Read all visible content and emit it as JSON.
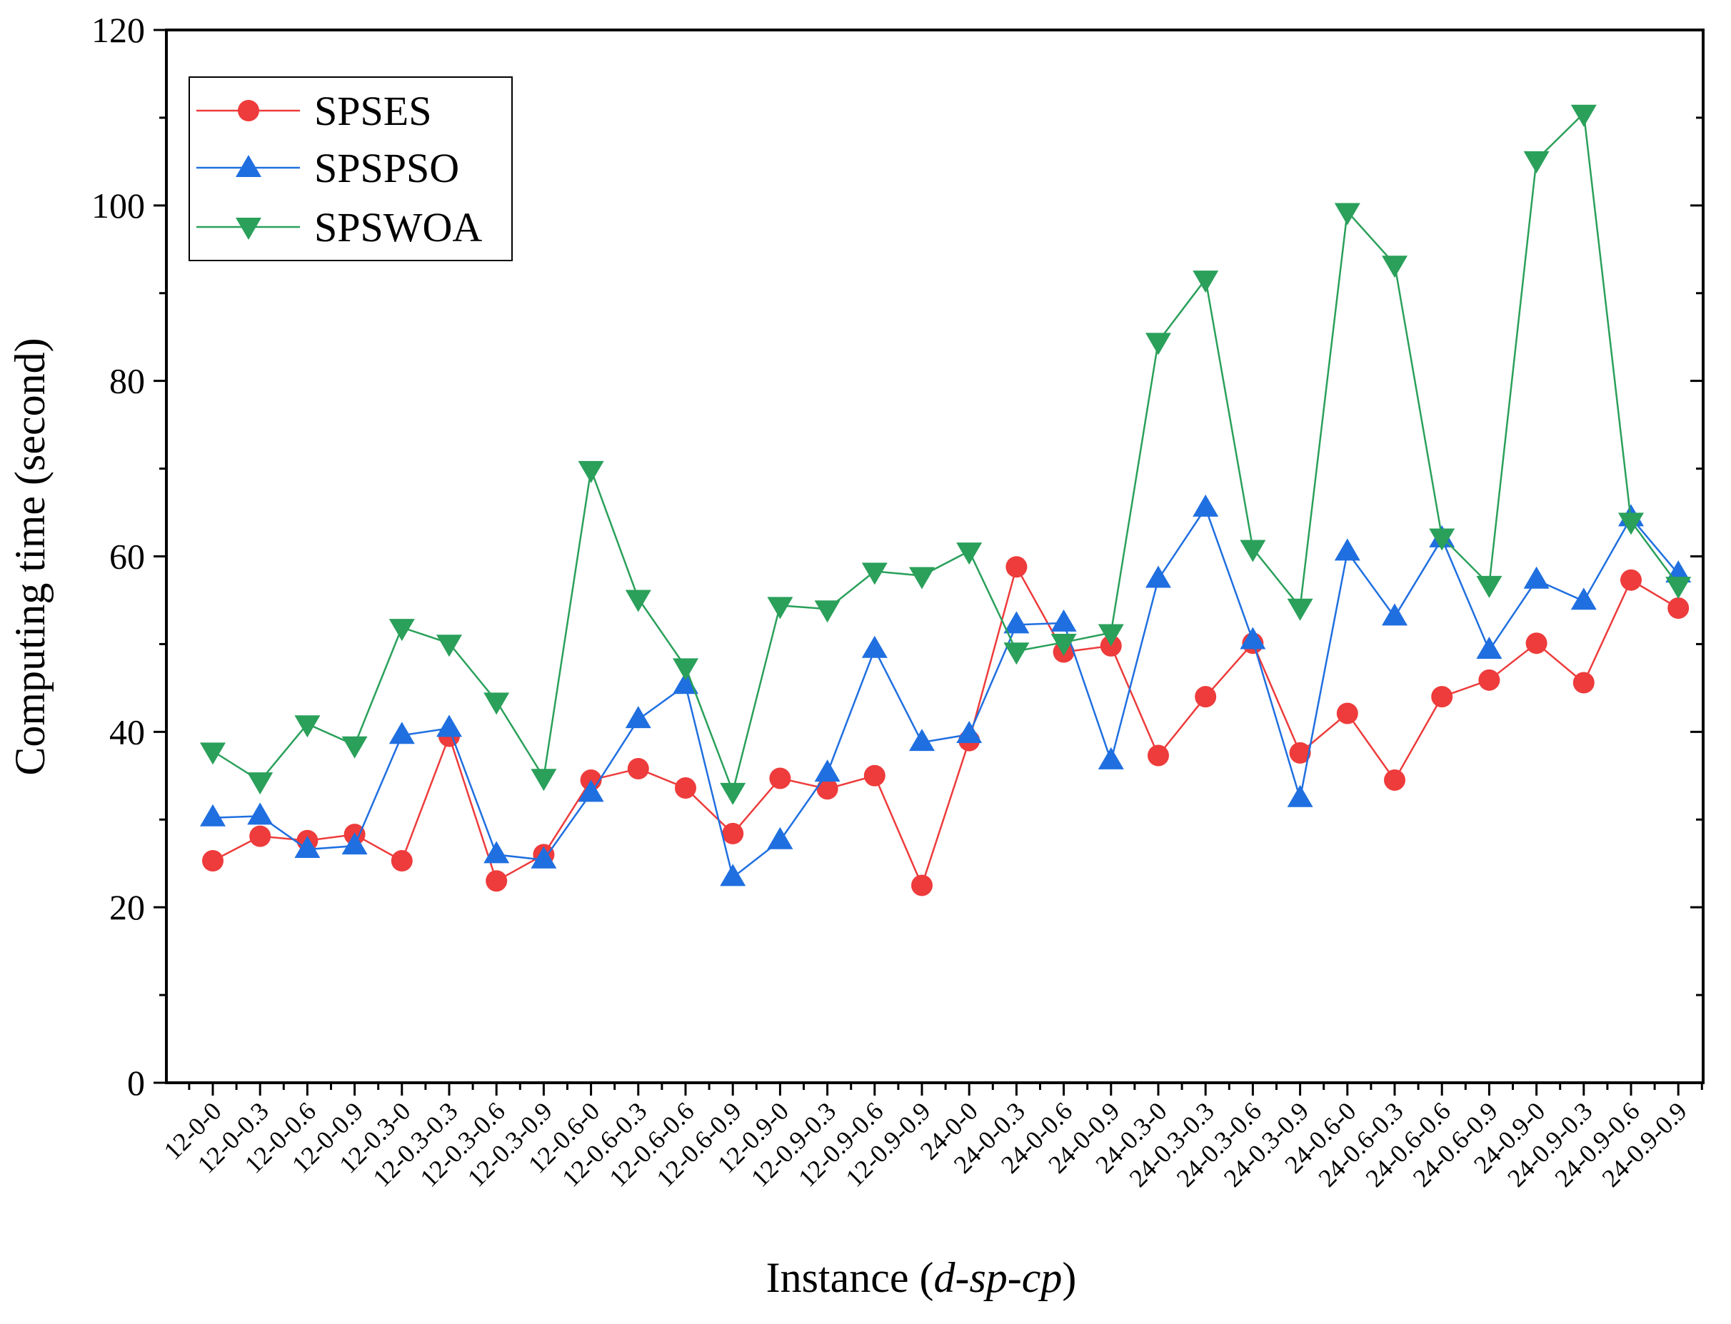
{
  "chart_data": {
    "type": "line",
    "title": "",
    "xlabel_prefix": "Instance (",
    "xlabel_italic": "d-sp-cp",
    "xlabel_suffix": ")",
    "xlabel": "Instance (d-sp-cp)",
    "ylabel": "Computing time (second)",
    "ylim": [
      0,
      120
    ],
    "yticks": [
      0,
      20,
      40,
      60,
      80,
      100,
      120
    ],
    "grid": false,
    "legend_position": "top-left",
    "categories": [
      "12-0-0",
      "12-0-0.3",
      "12-0-0.6",
      "12-0-0.9",
      "12-0.3-0",
      "12-0.3-0.3",
      "12-0.3-0.6",
      "12-0.3-0.9",
      "12-0.6-0",
      "12-0.6-0.3",
      "12-0.6-0.6",
      "12-0.6-0.9",
      "12-0.9-0",
      "12-0.9-0.3",
      "12-0.9-0.6",
      "12-0.9-0.9",
      "24-0-0",
      "24-0-0.3",
      "24-0-0.6",
      "24-0-0.9",
      "24-0.3-0",
      "24-0.3-0.3",
      "24-0.3-0.6",
      "24-0.3-0.9",
      "24-0.6-0",
      "24-0.6-0.3",
      "24-0.6-0.6",
      "24-0.6-0.9",
      "24-0.9-0",
      "24-0.9-0.3",
      "24-0.9-0.6",
      "24-0.9-0.9"
    ],
    "series": [
      {
        "name": "SPSES",
        "color": "#ee3b3b",
        "marker": "circle",
        "values": [
          25.3,
          28.1,
          27.6,
          28.3,
          25.3,
          39.5,
          23.0,
          26.0,
          34.5,
          35.8,
          33.6,
          28.4,
          34.7,
          33.5,
          35.0,
          22.5,
          39.0,
          58.8,
          49.1,
          49.8,
          37.3,
          44.0,
          50.1,
          37.6,
          42.1,
          34.5,
          44.0,
          45.9,
          50.1,
          45.6,
          57.3,
          54.1
        ]
      },
      {
        "name": "SPSPSO",
        "color": "#1f6fe0",
        "marker": "triangle-up",
        "values": [
          30.2,
          30.4,
          26.6,
          27.0,
          39.6,
          40.4,
          26.0,
          25.4,
          33.0,
          41.4,
          45.3,
          23.4,
          27.6,
          35.3,
          49.4,
          38.8,
          39.7,
          52.2,
          52.4,
          36.7,
          57.4,
          65.5,
          50.4,
          32.4,
          60.5,
          53.1,
          62.0,
          49.3,
          57.3,
          54.9,
          64.4,
          58.0
        ]
      },
      {
        "name": "SPSWOA",
        "color": "#2aa05a",
        "marker": "triangle-down",
        "values": [
          37.8,
          34.4,
          40.9,
          38.5,
          51.9,
          50.1,
          43.5,
          34.8,
          69.9,
          55.2,
          47.4,
          33.2,
          54.4,
          54.0,
          58.3,
          57.8,
          60.6,
          49.2,
          50.2,
          51.3,
          84.5,
          91.6,
          60.9,
          54.2,
          99.3,
          93.3,
          62.2,
          56.8,
          105.2,
          110.5,
          64.0,
          56.7
        ]
      }
    ]
  }
}
